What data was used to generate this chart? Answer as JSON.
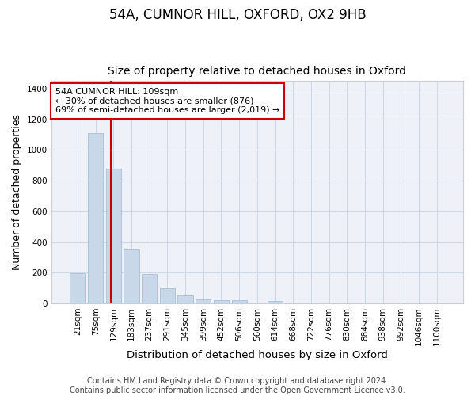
{
  "title1": "54A, CUMNOR HILL, OXFORD, OX2 9HB",
  "title2": "Size of property relative to detached houses in Oxford",
  "xlabel": "Distribution of detached houses by size in Oxford",
  "ylabel": "Number of detached properties",
  "bar_labels": [
    "21sqm",
    "75sqm",
    "129sqm",
    "183sqm",
    "237sqm",
    "291sqm",
    "345sqm",
    "399sqm",
    "452sqm",
    "506sqm",
    "560sqm",
    "614sqm",
    "668sqm",
    "722sqm",
    "776sqm",
    "830sqm",
    "884sqm",
    "938sqm",
    "992sqm",
    "1046sqm",
    "1100sqm"
  ],
  "bar_values": [
    196,
    1113,
    876,
    350,
    193,
    100,
    53,
    25,
    22,
    18,
    0,
    15,
    0,
    0,
    0,
    0,
    0,
    0,
    0,
    0,
    0
  ],
  "bar_color": "#c8d8e8",
  "bar_edge_color": "#a0b8cc",
  "grid_color": "#d0d8e8",
  "bg_color": "#eef2f8",
  "vline_color": "#cc0000",
  "annotation_text": "54A CUMNOR HILL: 109sqm\n← 30% of detached houses are smaller (876)\n69% of semi-detached houses are larger (2,019) →",
  "annotation_box_color": "#cc0000",
  "ylim": [
    0,
    1450
  ],
  "yticks": [
    0,
    200,
    400,
    600,
    800,
    1000,
    1200,
    1400
  ],
  "footer": "Contains HM Land Registry data © Crown copyright and database right 2024.\nContains public sector information licensed under the Open Government Licence v3.0.",
  "title1_fontsize": 12,
  "title2_fontsize": 10,
  "xlabel_fontsize": 9.5,
  "ylabel_fontsize": 9,
  "tick_fontsize": 7.5,
  "footer_fontsize": 7,
  "vline_pos": 1.85
}
